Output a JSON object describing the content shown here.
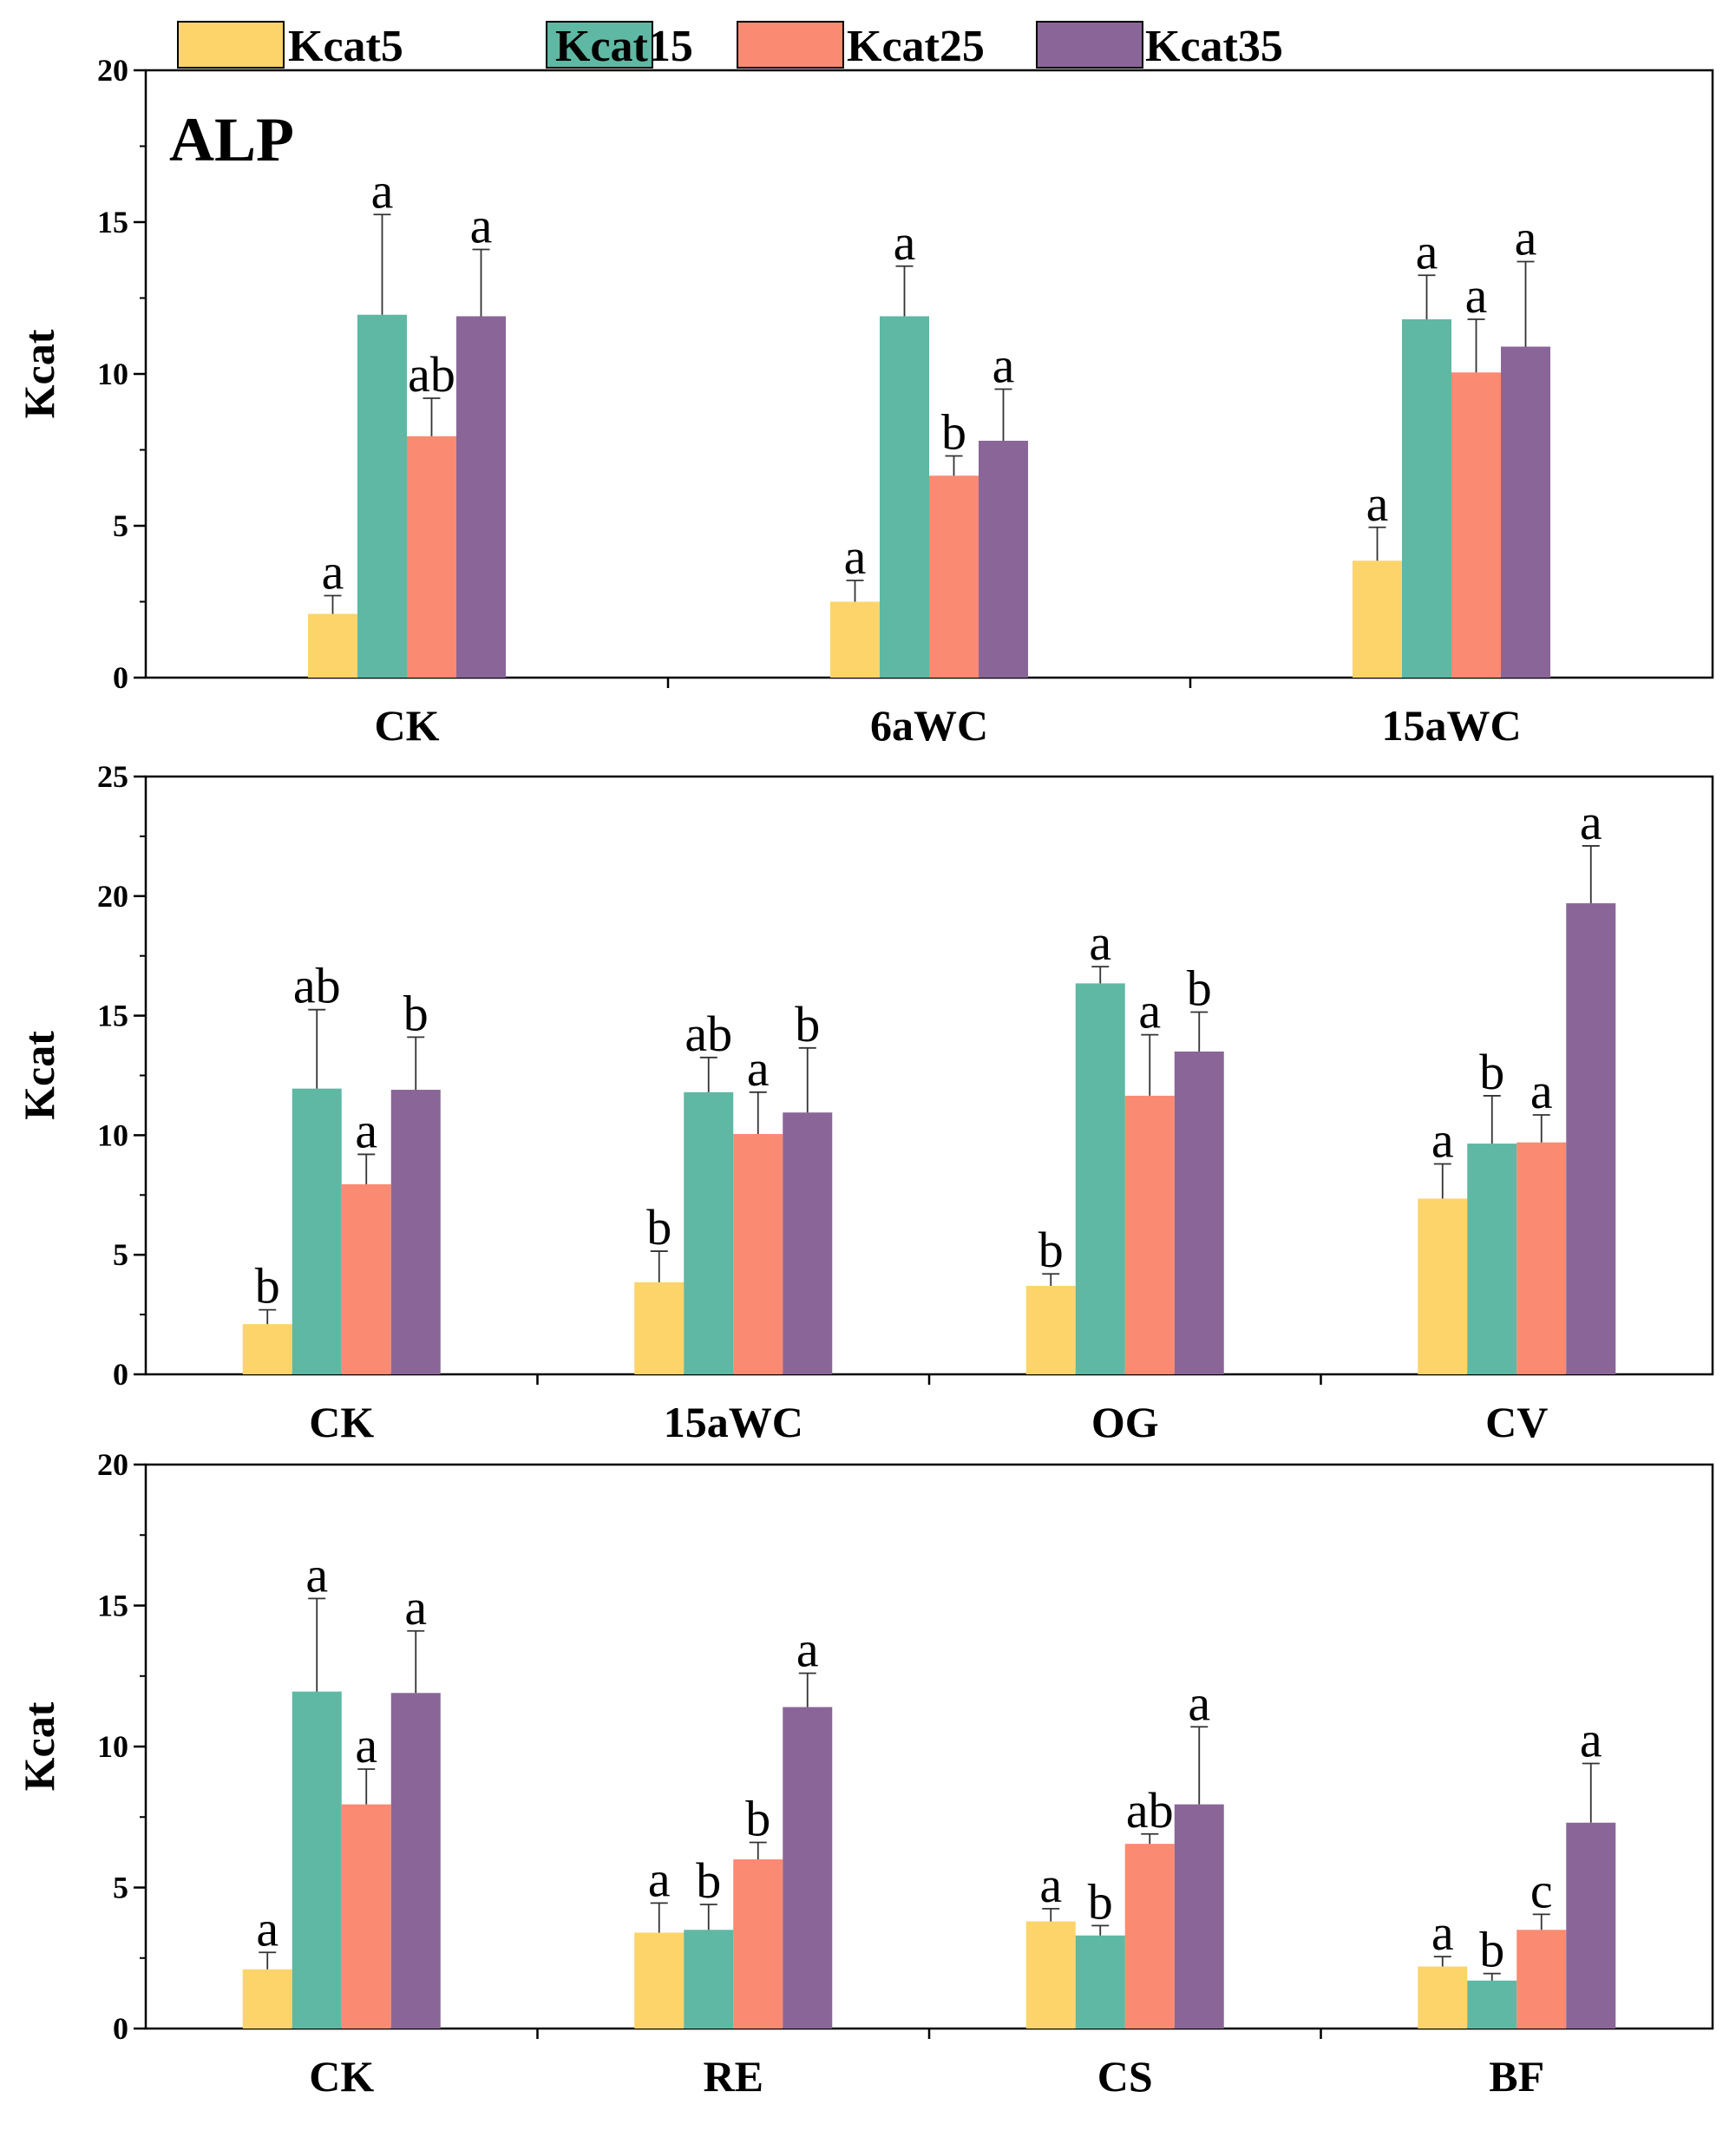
{
  "chart_data": [
    {
      "type": "bar",
      "panel_label": "ALP",
      "ylabel": "Kcat",
      "ylim": [
        0,
        20
      ],
      "yticks": [
        "0",
        "5",
        "10",
        "15",
        "20"
      ],
      "categories": [
        "CK",
        "6aWC",
        "15aWC"
      ],
      "series": [
        {
          "name": "Kcat5",
          "values": [
            2.1,
            2.5,
            3.85
          ],
          "errors": [
            0.6,
            0.7,
            1.1
          ],
          "letters": [
            "a",
            "a",
            "a"
          ]
        },
        {
          "name": "Kcat15",
          "values": [
            11.95,
            11.9,
            11.8
          ],
          "errors": [
            3.3,
            1.65,
            1.45
          ],
          "letters": [
            "a",
            "a",
            "a"
          ]
        },
        {
          "name": "Kcat25",
          "values": [
            7.95,
            6.65,
            10.05
          ],
          "errors": [
            1.25,
            0.65,
            1.75
          ],
          "letters": [
            "ab",
            "b",
            "a"
          ]
        },
        {
          "name": "Kcat35",
          "values": [
            11.9,
            7.8,
            10.9
          ],
          "errors": [
            2.2,
            1.7,
            2.8
          ],
          "letters": [
            "a",
            "a",
            "a"
          ]
        }
      ]
    },
    {
      "type": "bar",
      "ylabel": "Kcat",
      "ylim": [
        0,
        25
      ],
      "yticks": [
        "0",
        "5",
        "10",
        "15",
        "20",
        "25"
      ],
      "categories": [
        "CK",
        "15aWC",
        "OG",
        "CV"
      ],
      "series": [
        {
          "name": "Kcat5",
          "values": [
            2.1,
            3.85,
            3.7,
            7.35
          ],
          "errors": [
            0.6,
            1.3,
            0.5,
            1.45
          ],
          "letters": [
            "b",
            "b",
            "b",
            "a"
          ]
        },
        {
          "name": "Kcat15",
          "values": [
            11.95,
            11.8,
            16.35,
            9.65
          ],
          "errors": [
            3.3,
            1.45,
            0.7,
            2.0
          ],
          "letters": [
            "ab",
            "ab",
            "a",
            "b"
          ]
        },
        {
          "name": "Kcat25",
          "values": [
            7.95,
            10.05,
            11.65,
            9.7
          ],
          "errors": [
            1.25,
            1.75,
            2.55,
            1.15
          ],
          "letters": [
            "a",
            "a",
            "a",
            "a"
          ]
        },
        {
          "name": "Kcat35",
          "values": [
            11.9,
            10.95,
            13.5,
            19.7
          ],
          "errors": [
            2.2,
            2.7,
            1.65,
            2.4
          ],
          "letters": [
            "b",
            "b",
            "b",
            "a"
          ]
        }
      ]
    },
    {
      "type": "bar",
      "ylabel": "Kcat",
      "ylim": [
        0,
        20
      ],
      "yticks": [
        "0",
        "5",
        "10",
        "15",
        "20"
      ],
      "categories": [
        "CK",
        "RE",
        "CS",
        "BF"
      ],
      "series": [
        {
          "name": "Kcat5",
          "values": [
            2.1,
            3.4,
            3.8,
            2.2
          ],
          "errors": [
            0.6,
            1.05,
            0.45,
            0.35
          ],
          "letters": [
            "a",
            "a",
            "a",
            "a"
          ]
        },
        {
          "name": "Kcat15",
          "values": [
            11.95,
            3.5,
            3.3,
            1.7
          ],
          "errors": [
            3.3,
            0.9,
            0.35,
            0.25
          ],
          "letters": [
            "a",
            "b",
            "b",
            "b"
          ]
        },
        {
          "name": "Kcat25",
          "values": [
            7.95,
            6.0,
            6.55,
            3.5
          ],
          "errors": [
            1.25,
            0.6,
            0.35,
            0.55
          ],
          "letters": [
            "a",
            "b",
            "ab",
            "c"
          ]
        },
        {
          "name": "Kcat35",
          "values": [
            11.9,
            11.4,
            7.95,
            7.3
          ],
          "errors": [
            2.2,
            1.2,
            2.75,
            2.1
          ],
          "letters": [
            "a",
            "a",
            "a",
            "a"
          ]
        }
      ]
    }
  ],
  "legend": {
    "items": [
      {
        "name": "Kcat5",
        "color": "#fcd46a"
      },
      {
        "name": "Kcat15",
        "color": "#5fb8a3"
      },
      {
        "name": "Kcat25",
        "color": "#fa8a72"
      },
      {
        "name": "Kcat35",
        "color": "#8a6698"
      }
    ]
  }
}
